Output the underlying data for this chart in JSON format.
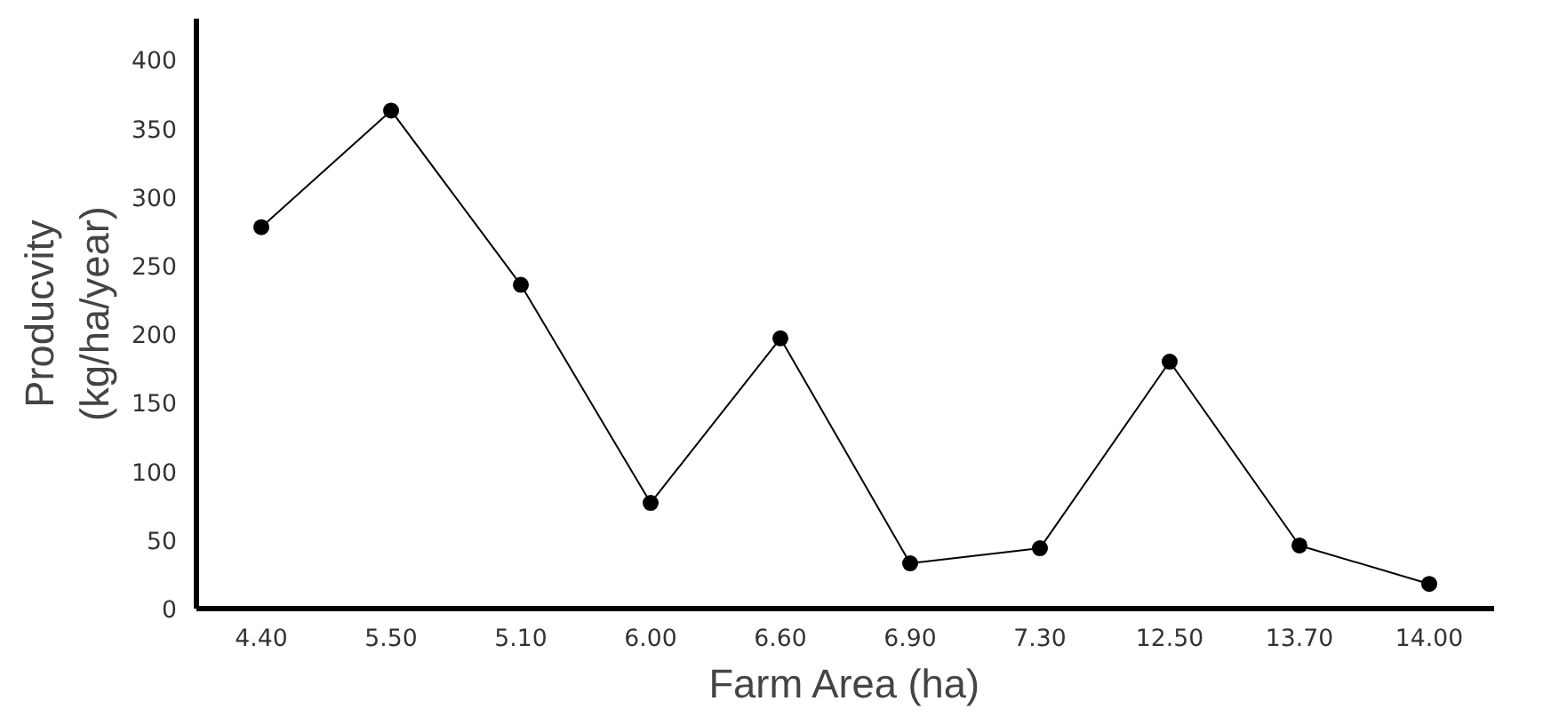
{
  "chart_data": {
    "type": "line",
    "xlabel": "Farm Area (ha)",
    "ylabel": "Producvity\n(kg/ha/year)",
    "categories": [
      "4.40",
      "5.50",
      "5.10",
      "6.00",
      "6.60",
      "6.90",
      "7.30",
      "12.50",
      "13.70",
      "14.00"
    ],
    "series": [
      {
        "color": "#000000",
        "values": [
          278,
          363,
          236,
          77,
          197,
          33,
          44,
          180,
          46,
          18
        ]
      }
    ],
    "ylim": [
      0,
      430
    ],
    "yticks": [
      0,
      50,
      100,
      150,
      200,
      250,
      300,
      350,
      400
    ],
    "grid": false,
    "marker": "circle",
    "line_style": "solid"
  }
}
